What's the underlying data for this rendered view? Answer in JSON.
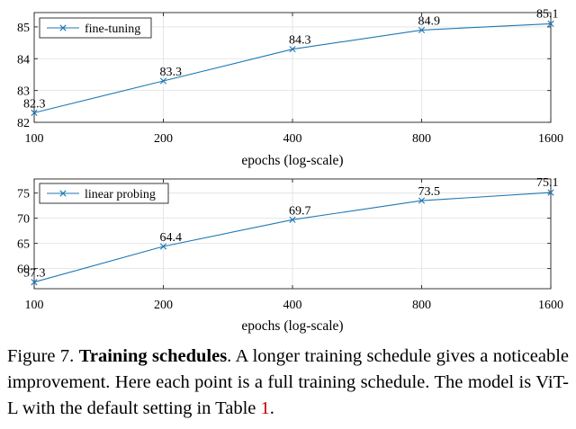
{
  "chart_data": [
    {
      "type": "line",
      "x": [
        100,
        200,
        400,
        800,
        1600
      ],
      "values": [
        82.3,
        83.3,
        84.3,
        84.9,
        85.1
      ],
      "data_labels": [
        "82.3",
        "83.3",
        "84.3",
        "84.9",
        "85.1"
      ],
      "series_name": "fine-tuning",
      "xlabel": "epochs (log-scale)",
      "xscale": "log",
      "xticks": [
        "100",
        "200",
        "400",
        "800",
        "1600"
      ],
      "yticks": [
        82,
        83,
        84,
        85
      ],
      "ytick_labels": [
        "82",
        "83",
        "84",
        "85"
      ],
      "ylim": [
        82,
        85.45
      ],
      "legend": "top-left",
      "color": "#1f77b4"
    },
    {
      "type": "line",
      "x": [
        100,
        200,
        400,
        800,
        1600
      ],
      "values": [
        57.3,
        64.4,
        69.7,
        73.5,
        75.1
      ],
      "data_labels": [
        "57.3",
        "64.4",
        "69.7",
        "73.5",
        "75.1"
      ],
      "series_name": "linear probing",
      "xlabel": "epochs (log-scale)",
      "xscale": "log",
      "xticks": [
        "100",
        "200",
        "400",
        "800",
        "1600"
      ],
      "yticks": [
        60,
        65,
        70,
        75
      ],
      "ytick_labels": [
        "60",
        "65",
        "70",
        "75"
      ],
      "ylim": [
        56,
        77.8
      ],
      "legend": "top-left",
      "color": "#1f77b4"
    }
  ],
  "caption": {
    "prefix": "Figure 7.",
    "bold": "Training schedules",
    "text": ". A longer training schedule gives a noticeable improvement. Here each point is a full training schedule. The model is ViT-L with the default setting in Table ",
    "ref": "1",
    "end": "."
  }
}
